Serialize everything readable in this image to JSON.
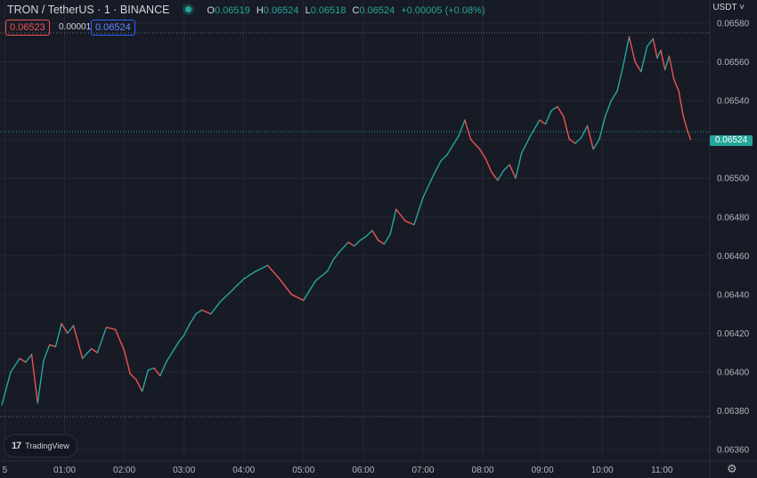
{
  "header": {
    "symbol": "TRON / TetherUS · 1 · BINANCE",
    "ohlc": {
      "o_label": "O",
      "o_value": "0.06519",
      "h_label": "H",
      "h_value": "0.06524",
      "l_label": "L",
      "l_value": "0.06518",
      "c_label": "C",
      "c_value": "0.06524",
      "change": "+0.00005 (+0.08%)"
    },
    "status_color": "#26a69a"
  },
  "quotes": {
    "sell": "0.06523",
    "spread": "0.00001",
    "buy": "0.06524"
  },
  "currency_label": "USDT",
  "current_price_label": "0.06524",
  "logo": {
    "text": "TradingView",
    "mark": "17"
  },
  "colors": {
    "up": "#26a69a",
    "down": "#ef5350",
    "background": "#171b26",
    "grid": "#242733"
  },
  "chart_data": {
    "type": "line",
    "ytick_labels": [
      "0.06360",
      "0.06380",
      "0.06400",
      "0.06420",
      "0.06440",
      "0.06460",
      "0.06480",
      "0.06500",
      "0.06520",
      "0.06540",
      "0.06560",
      "0.06580"
    ],
    "ylim": [
      0.06354,
      0.06592
    ],
    "xtick_labels": [
      "5",
      "01:00",
      "02:00",
      "03:00",
      "04:00",
      "05:00",
      "06:00",
      "07:00",
      "08:00",
      "09:00",
      "10:00",
      "11:00"
    ],
    "xlim": [
      -0.08,
      11.8
    ],
    "current_price": 0.06524,
    "range_high": 0.06575,
    "range_low": 0.06377,
    "series": [
      {
        "x": [
          -0.05,
          0.1,
          0.25,
          0.35,
          0.45,
          0.55,
          0.65,
          0.75,
          0.85,
          0.95,
          1.05,
          1.15,
          1.3,
          1.45,
          1.55,
          1.7,
          1.85,
          2.0,
          2.1,
          2.2,
          2.3,
          2.4,
          2.5,
          2.6,
          2.7,
          2.8,
          2.9,
          3.0,
          3.1,
          3.2,
          3.3,
          3.45,
          3.6,
          3.8,
          4.0,
          4.2,
          4.4,
          4.6,
          4.8,
          5.0,
          5.2,
          5.4,
          5.5,
          5.6,
          5.75,
          5.85,
          5.95,
          6.05,
          6.15,
          6.25,
          6.35,
          6.45,
          6.55,
          6.7,
          6.85,
          7.0,
          7.15,
          7.3,
          7.4,
          7.5,
          7.6,
          7.7,
          7.8,
          7.95,
          8.05,
          8.15,
          8.25,
          8.35,
          8.45,
          8.55,
          8.65,
          8.8,
          8.95,
          9.05,
          9.15,
          9.25,
          9.35,
          9.45,
          9.55,
          9.65,
          9.75,
          9.85,
          9.95,
          10.05,
          10.15,
          10.25,
          10.35,
          10.45,
          10.55,
          10.65,
          10.75,
          10.85,
          10.92,
          10.98,
          11.05,
          11.12,
          11.2,
          11.28,
          11.35,
          11.42,
          11.48
        ],
        "y": [
          0.06383,
          0.064,
          0.06407,
          0.06405,
          0.06409,
          0.06384,
          0.06406,
          0.06414,
          0.06413,
          0.06425,
          0.0642,
          0.06424,
          0.06407,
          0.06412,
          0.0641,
          0.06423,
          0.06422,
          0.06411,
          0.06399,
          0.06396,
          0.0639,
          0.06401,
          0.06402,
          0.06398,
          0.06405,
          0.0641,
          0.06415,
          0.06419,
          0.06425,
          0.0643,
          0.06432,
          0.0643,
          0.06436,
          0.06442,
          0.06448,
          0.06452,
          0.06455,
          0.06448,
          0.0644,
          0.06437,
          0.06447,
          0.06452,
          0.06458,
          0.06462,
          0.06467,
          0.06465,
          0.06468,
          0.0647,
          0.06473,
          0.06468,
          0.06466,
          0.06471,
          0.06484,
          0.06478,
          0.06476,
          0.0649,
          0.065,
          0.06509,
          0.06512,
          0.06517,
          0.06522,
          0.0653,
          0.0652,
          0.06515,
          0.0651,
          0.06503,
          0.06499,
          0.06504,
          0.06507,
          0.065,
          0.06513,
          0.06522,
          0.0653,
          0.06528,
          0.06535,
          0.06537,
          0.06532,
          0.0652,
          0.06518,
          0.06521,
          0.06527,
          0.06515,
          0.0652,
          0.06532,
          0.0654,
          0.06545,
          0.06558,
          0.06573,
          0.0656,
          0.06555,
          0.06568,
          0.06572,
          0.06562,
          0.06566,
          0.06556,
          0.06563,
          0.06551,
          0.06545,
          0.06533,
          0.06525,
          0.0652
        ]
      }
    ]
  }
}
